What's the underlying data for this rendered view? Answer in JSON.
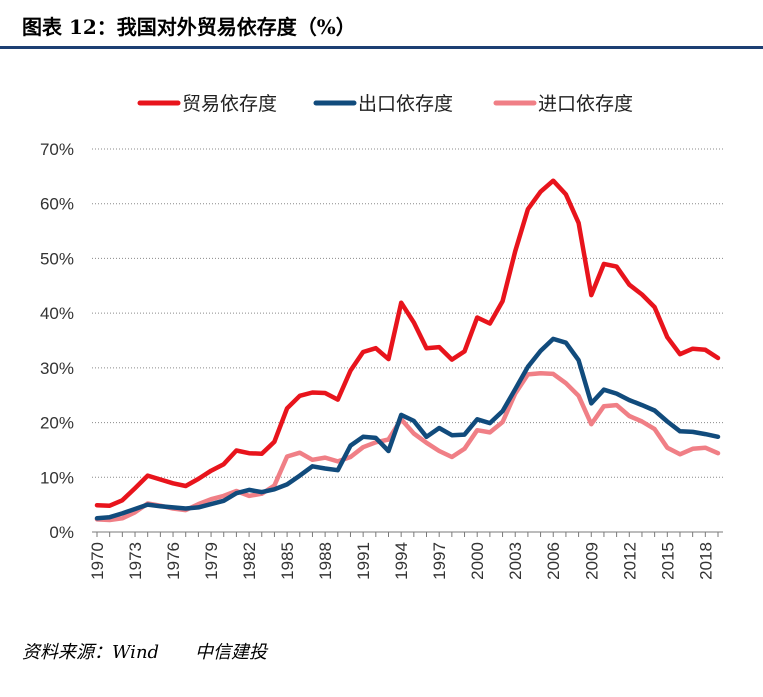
{
  "header": {
    "title": "图表 12：我国对外贸易依存度（%）"
  },
  "source": {
    "text": "资料来源：Wind　　中信建投"
  },
  "chart_data": {
    "type": "line",
    "title": "",
    "xlabel": "",
    "ylabel": "",
    "ylim": [
      0,
      70
    ],
    "y_ticks": [
      "0%",
      "10%",
      "20%",
      "30%",
      "40%",
      "50%",
      "60%",
      "70%"
    ],
    "x_tick_labels": [
      "1970",
      "1973",
      "1976",
      "1979",
      "1982",
      "1985",
      "1988",
      "1991",
      "1994",
      "1997",
      "2000",
      "2003",
      "2006",
      "2009",
      "2012",
      "2015",
      "2018"
    ],
    "grid": "horizontal-dotted",
    "legend_position": "top",
    "x": [
      1970,
      1971,
      1972,
      1973,
      1974,
      1975,
      1976,
      1977,
      1978,
      1979,
      1980,
      1981,
      1982,
      1983,
      1984,
      1985,
      1986,
      1987,
      1988,
      1989,
      1990,
      1991,
      1992,
      1993,
      1994,
      1995,
      1996,
      1997,
      1998,
      1999,
      2000,
      2001,
      2002,
      2003,
      2004,
      2005,
      2006,
      2007,
      2008,
      2009,
      2010,
      2011,
      2012,
      2013,
      2014,
      2015,
      2016,
      2017,
      2018,
      2019
    ],
    "series": [
      {
        "name": "贸易依存度",
        "color": "#e8141c",
        "values": [
          4.9,
          4.8,
          5.8,
          8.0,
          10.3,
          9.6,
          8.9,
          8.4,
          9.7,
          11.2,
          12.4,
          14.9,
          14.4,
          14.3,
          16.5,
          22.6,
          24.9,
          25.5,
          25.4,
          24.2,
          29.5,
          32.9,
          33.6,
          31.6,
          41.9,
          38.3,
          33.6,
          33.8,
          31.5,
          33.0,
          39.2,
          38.1,
          42.2,
          51.3,
          59.0,
          62.2,
          64.2,
          61.7,
          56.5,
          43.3,
          49.0,
          48.5,
          45.2,
          43.4,
          41.1,
          35.6,
          32.5,
          33.5,
          33.3,
          31.8
        ]
      },
      {
        "name": "出口依存度",
        "color": "#114b7c",
        "values": [
          2.5,
          2.7,
          3.4,
          4.2,
          5.0,
          4.7,
          4.5,
          4.3,
          4.5,
          5.1,
          5.7,
          7.1,
          7.7,
          7.3,
          7.8,
          8.7,
          10.3,
          12.0,
          11.6,
          11.3,
          15.8,
          17.4,
          17.2,
          14.8,
          21.4,
          20.3,
          17.4,
          19.0,
          17.7,
          17.8,
          20.6,
          19.9,
          22.1,
          26.1,
          30.2,
          33.1,
          35.3,
          34.6,
          31.4,
          23.5,
          26.0,
          25.3,
          24.1,
          23.2,
          22.2,
          20.2,
          18.4,
          18.3,
          17.9,
          17.4
        ]
      },
      {
        "name": "进口依存度",
        "color": "#f07f86",
        "values": [
          2.3,
          2.2,
          2.5,
          3.6,
          5.2,
          4.8,
          4.3,
          4.0,
          5.1,
          6.0,
          6.6,
          7.5,
          6.6,
          7.0,
          8.5,
          13.8,
          14.5,
          13.2,
          13.6,
          12.9,
          13.7,
          15.5,
          16.4,
          16.9,
          20.6,
          18.0,
          16.3,
          14.8,
          13.7,
          15.2,
          18.6,
          18.2,
          20.1,
          25.3,
          28.8,
          29.0,
          28.9,
          27.2,
          24.9,
          19.7,
          23.0,
          23.2,
          21.2,
          20.2,
          18.8,
          15.4,
          14.2,
          15.2,
          15.4,
          14.4
        ]
      }
    ]
  }
}
